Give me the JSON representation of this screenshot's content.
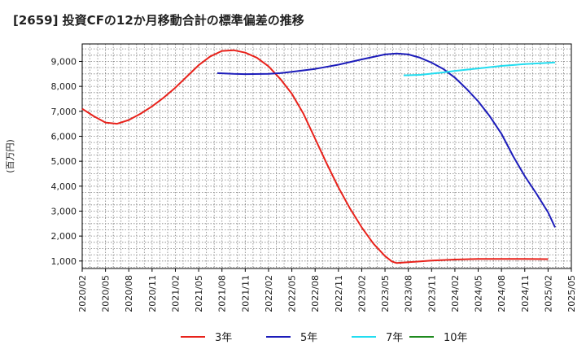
{
  "chart_data": {
    "type": "line",
    "title": "[2659]  投資CFの12か月移動合計の標準偏差の推移",
    "ylabel": "(百万円)",
    "xlabel": "",
    "ylim": [
      700,
      9700
    ],
    "yticks": [
      1000,
      2000,
      3000,
      4000,
      5000,
      6000,
      7000,
      8000,
      9000
    ],
    "ytick_labels": [
      "1,000",
      "2,000",
      "3,000",
      "4,000",
      "5,000",
      "6,000",
      "7,000",
      "8,000",
      "9,000"
    ],
    "x_categories": [
      "2020/02",
      "2020/05",
      "2020/08",
      "2020/11",
      "2021/02",
      "2021/05",
      "2021/08",
      "2021/11",
      "2022/02",
      "2022/05",
      "2022/08",
      "2022/11",
      "2023/02",
      "2023/05",
      "2023/08",
      "2023/11",
      "2024/02",
      "2024/05",
      "2024/08",
      "2024/11",
      "2025/02",
      "2025/05"
    ],
    "grid": true,
    "legend_position": "bottom",
    "series": [
      {
        "name": "3年",
        "color": "#e8221b",
        "points": [
          [
            0,
            7100
          ],
          [
            0.5,
            6800
          ],
          [
            1,
            6550
          ],
          [
            1.5,
            6500
          ],
          [
            2,
            6650
          ],
          [
            2.5,
            6900
          ],
          [
            3,
            7200
          ],
          [
            3.5,
            7550
          ],
          [
            4,
            7950
          ],
          [
            4.5,
            8400
          ],
          [
            5,
            8850
          ],
          [
            5.5,
            9200
          ],
          [
            6,
            9420
          ],
          [
            6.5,
            9450
          ],
          [
            7,
            9350
          ],
          [
            7.5,
            9150
          ],
          [
            8,
            8800
          ],
          [
            8.5,
            8300
          ],
          [
            9,
            7700
          ],
          [
            9.5,
            6900
          ],
          [
            10,
            5900
          ],
          [
            10.5,
            4900
          ],
          [
            11,
            3950
          ],
          [
            11.5,
            3100
          ],
          [
            12,
            2350
          ],
          [
            12.5,
            1700
          ],
          [
            13,
            1200
          ],
          [
            13.3,
            980
          ],
          [
            13.5,
            920
          ],
          [
            14,
            950
          ],
          [
            15,
            1020
          ],
          [
            16,
            1060
          ],
          [
            17,
            1080
          ],
          [
            18,
            1085
          ],
          [
            19,
            1080
          ],
          [
            20,
            1075
          ]
        ]
      },
      {
        "name": "5年",
        "color": "#1c1cba",
        "points": [
          [
            5.8,
            8530
          ],
          [
            6.5,
            8500
          ],
          [
            7,
            8490
          ],
          [
            8,
            8500
          ],
          [
            8.5,
            8530
          ],
          [
            9,
            8580
          ],
          [
            10,
            8700
          ],
          [
            11,
            8870
          ],
          [
            12,
            9080
          ],
          [
            13,
            9280
          ],
          [
            13.5,
            9320
          ],
          [
            14,
            9280
          ],
          [
            14.5,
            9150
          ],
          [
            15,
            8950
          ],
          [
            15.5,
            8700
          ],
          [
            16,
            8350
          ],
          [
            16.5,
            7900
          ],
          [
            17,
            7400
          ],
          [
            17.5,
            6800
          ],
          [
            18,
            6100
          ],
          [
            18.5,
            5200
          ],
          [
            19,
            4400
          ],
          [
            19.5,
            3700
          ],
          [
            20,
            2950
          ],
          [
            20.3,
            2350
          ]
        ]
      },
      {
        "name": "7年",
        "color": "#22ddf0",
        "points": [
          [
            13.8,
            8440
          ],
          [
            14.5,
            8460
          ],
          [
            15,
            8510
          ],
          [
            15.5,
            8560
          ],
          [
            16,
            8620
          ],
          [
            17,
            8720
          ],
          [
            18,
            8820
          ],
          [
            19,
            8890
          ],
          [
            20,
            8940
          ],
          [
            20.3,
            8960
          ]
        ]
      },
      {
        "name": "10年",
        "color": "#1e8a1e",
        "points": []
      }
    ]
  }
}
